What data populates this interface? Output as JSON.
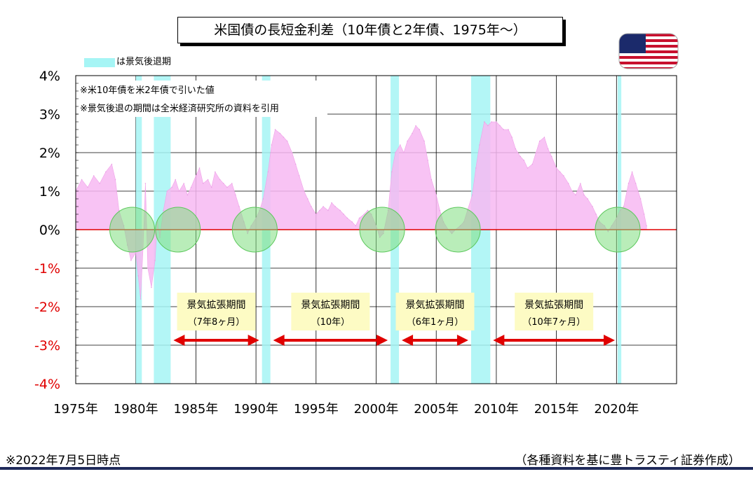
{
  "title": "米国債の長短金利差（10年債と2年債、1975年〜）",
  "legend": {
    "swatch_color": "#a6f5f5",
    "text": "は景気後退期"
  },
  "notes": [
    "※米10年債を米2年債で引いた値",
    "※景気後退の期間は全米経済研究所の資料を引用"
  ],
  "footer": {
    "left": "※2022年7月5日時点",
    "right": "（各種資料を基に豊トラスティ証券作成）"
  },
  "flag_icon": "us-flag-icon",
  "chart_data": {
    "type": "area",
    "title": "米国債の長短金利差（10年債と2年債、1975年〜）",
    "xlabel": "",
    "ylabel": "",
    "xlim": [
      1975,
      2025
    ],
    "ylim": [
      -4,
      4
    ],
    "grid": true,
    "x_ticks": [
      "1975年",
      "1980年",
      "1985年",
      "1990年",
      "1995年",
      "2000年",
      "2005年",
      "2010年",
      "2015年",
      "2020年"
    ],
    "x_tick_values": [
      1975,
      1980,
      1985,
      1990,
      1995,
      2000,
      2005,
      2010,
      2015,
      2020
    ],
    "y_ticks": [
      "4%",
      "3%",
      "2%",
      "1%",
      "0%",
      "-1%",
      "-2%",
      "-3%",
      "-4%"
    ],
    "y_tick_values": [
      4,
      3,
      2,
      1,
      0,
      -1,
      -2,
      -3,
      -4
    ],
    "y_tick_colors": [
      "#000000",
      "#000000",
      "#000000",
      "#000000",
      "#000000",
      "#e00000",
      "#e00000",
      "#e00000",
      "#e00000"
    ],
    "series": [
      {
        "color": "#f7b8f2",
        "x": [
          1975.0,
          1975.5,
          1976.0,
          1976.5,
          1977.0,
          1977.5,
          1978.0,
          1978.3,
          1978.6,
          1979.0,
          1979.3,
          1979.6,
          1980.0,
          1980.2,
          1980.4,
          1980.6,
          1980.8,
          1981.0,
          1981.3,
          1981.6,
          1981.8,
          1982.0,
          1982.3,
          1982.6,
          1983.0,
          1983.3,
          1983.6,
          1984.0,
          1984.3,
          1984.6,
          1985.0,
          1985.3,
          1985.6,
          1986.0,
          1986.3,
          1986.6,
          1987.0,
          1987.3,
          1987.6,
          1988.0,
          1988.3,
          1988.6,
          1989.0,
          1989.3,
          1989.6,
          1990.0,
          1990.3,
          1990.6,
          1991.0,
          1991.3,
          1991.6,
          1992.0,
          1992.3,
          1992.6,
          1993.0,
          1993.3,
          1993.6,
          1994.0,
          1994.3,
          1994.6,
          1995.0,
          1995.3,
          1995.6,
          1996.0,
          1996.3,
          1996.6,
          1997.0,
          1997.3,
          1997.6,
          1998.0,
          1998.3,
          1998.6,
          1999.0,
          1999.3,
          1999.6,
          2000.0,
          2000.3,
          2000.6,
          2001.0,
          2001.3,
          2001.6,
          2002.0,
          2002.3,
          2002.6,
          2003.0,
          2003.3,
          2003.6,
          2004.0,
          2004.3,
          2004.6,
          2005.0,
          2005.3,
          2005.6,
          2006.0,
          2006.3,
          2006.6,
          2007.0,
          2007.3,
          2007.6,
          2008.0,
          2008.3,
          2008.6,
          2009.0,
          2009.3,
          2009.6,
          2010.0,
          2010.3,
          2010.6,
          2011.0,
          2011.3,
          2011.6,
          2012.0,
          2012.3,
          2012.6,
          2013.0,
          2013.3,
          2013.6,
          2014.0,
          2014.3,
          2014.6,
          2015.0,
          2015.3,
          2015.6,
          2016.0,
          2016.3,
          2016.6,
          2017.0,
          2017.3,
          2017.6,
          2018.0,
          2018.3,
          2018.6,
          2019.0,
          2019.3,
          2019.6,
          2020.0,
          2020.3,
          2020.6,
          2021.0,
          2021.3,
          2021.6,
          2022.0,
          2022.3,
          2022.5
        ],
        "values": [
          1.0,
          1.3,
          1.1,
          1.4,
          1.2,
          1.5,
          1.7,
          1.3,
          0.5,
          0.1,
          -0.4,
          -0.8,
          -0.6,
          -1.2,
          -1.8,
          -0.5,
          1.2,
          -1.0,
          -1.5,
          -0.8,
          0.2,
          -0.2,
          0.5,
          1.0,
          1.1,
          1.3,
          1.0,
          1.2,
          0.9,
          1.1,
          1.4,
          1.6,
          1.2,
          1.3,
          1.1,
          1.5,
          1.3,
          1.2,
          1.1,
          1.2,
          0.9,
          0.6,
          0.2,
          -0.1,
          0.1,
          0.3,
          0.5,
          0.8,
          1.5,
          2.2,
          2.6,
          2.5,
          2.4,
          2.3,
          2.0,
          1.7,
          1.4,
          1.0,
          0.8,
          0.6,
          0.4,
          0.5,
          0.6,
          0.5,
          0.7,
          0.6,
          0.5,
          0.4,
          0.3,
          0.2,
          0.1,
          0.3,
          0.4,
          0.5,
          0.4,
          0.1,
          -0.2,
          -0.1,
          0.5,
          1.5,
          2.0,
          2.2,
          2.0,
          2.3,
          2.5,
          2.7,
          2.6,
          2.3,
          1.8,
          1.3,
          0.9,
          0.5,
          0.2,
          0.0,
          -0.1,
          0.0,
          0.1,
          0.2,
          0.5,
          0.9,
          1.6,
          2.2,
          2.8,
          2.7,
          2.8,
          2.8,
          2.7,
          2.6,
          2.6,
          2.4,
          2.1,
          1.9,
          1.8,
          1.6,
          1.7,
          2.0,
          2.3,
          2.4,
          2.1,
          1.9,
          1.6,
          1.5,
          1.4,
          1.2,
          1.0,
          0.9,
          1.2,
          0.9,
          0.8,
          0.6,
          0.4,
          0.2,
          0.1,
          -0.05,
          0.1,
          0.3,
          0.5,
          0.6,
          1.2,
          1.5,
          1.2,
          0.8,
          0.4,
          0.1
        ]
      }
    ],
    "recession_periods": [
      [
        1980.0,
        1980.5
      ],
      [
        1981.5,
        1982.9
      ],
      [
        1990.5,
        1991.2
      ],
      [
        2001.2,
        2001.9
      ],
      [
        2007.9,
        2009.5
      ],
      [
        2020.1,
        2020.4
      ]
    ],
    "recession_color": "#a6f5f5",
    "zero_line_color": "#e00000",
    "inversion_markers": [
      1979.7,
      1983.5,
      1989.9,
      2000.5,
      2006.8,
      2020.1
    ],
    "inversion_marker_color": "#7fdf7f",
    "expansion_periods": [
      {
        "start": 1982.9,
        "end": 1990.5,
        "label": "景気拡張期間",
        "duration": "（7年8ヶ月）"
      },
      {
        "start": 1991.2,
        "end": 2001.2,
        "label": "景気拡張期間",
        "duration": "（10年）"
      },
      {
        "start": 2001.9,
        "end": 2007.9,
        "label": "景気拡張期間",
        "duration": "（6年1ヶ月）"
      },
      {
        "start": 2009.5,
        "end": 2020.1,
        "label": "景気拡張期間",
        "duration": "（10年7ヶ月）"
      }
    ],
    "expansion_box_color": "#fdfbc4",
    "arrow_color": "#e00000"
  }
}
